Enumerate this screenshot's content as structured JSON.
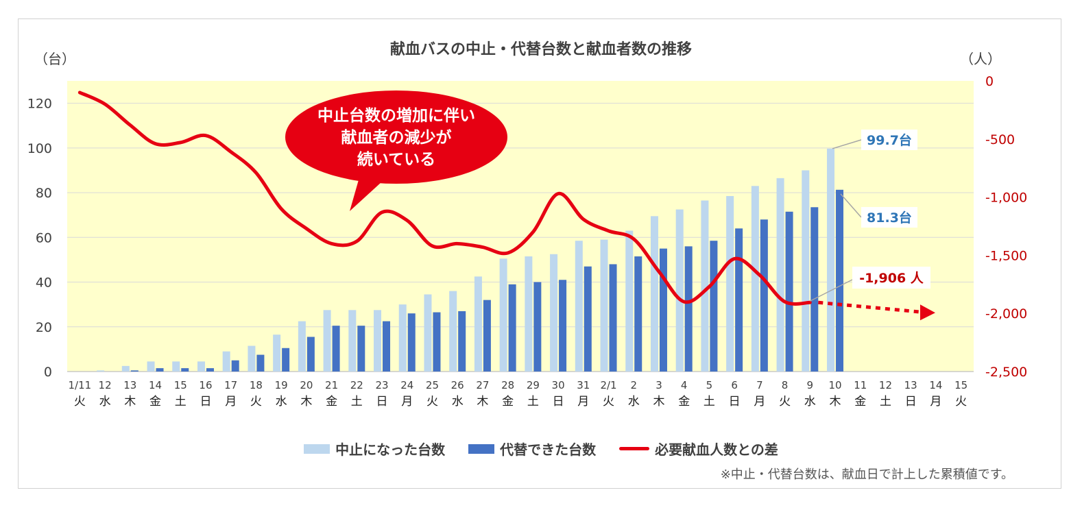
{
  "title": "献血バスの中止・代替台数と献血者数の推移",
  "left_unit": "（台）",
  "right_unit": "（人）",
  "note": "※中止・代替台数は、献血日で計上した累積値です。",
  "callout": [
    "中止台数の増加に伴い",
    "献血者の減少が",
    "続いている"
  ],
  "chart_data": {
    "type": "bar",
    "title": "献血バスの中止・代替台数と献血者数の推移",
    "categories": [
      "1/11",
      "12",
      "13",
      "14",
      "15",
      "16",
      "17",
      "18",
      "19",
      "20",
      "21",
      "22",
      "23",
      "24",
      "25",
      "26",
      "27",
      "28",
      "29",
      "30",
      "31",
      "2/1",
      "2",
      "3",
      "4",
      "5",
      "6",
      "7",
      "8",
      "9",
      "10",
      "11",
      "12",
      "13",
      "14",
      "15"
    ],
    "weekdays": [
      "火",
      "水",
      "木",
      "金",
      "土",
      "日",
      "月",
      "火",
      "水",
      "木",
      "金",
      "土",
      "日",
      "月",
      "火",
      "水",
      "木",
      "金",
      "土",
      "日",
      "月",
      "火",
      "水",
      "木",
      "金",
      "土",
      "日",
      "月",
      "火",
      "水",
      "木",
      "金",
      "土",
      "日",
      "月",
      "火"
    ],
    "left_axis": {
      "min": 0,
      "max": 120,
      "ticks": [
        "0",
        "20",
        "40",
        "60",
        "80",
        "100",
        "120"
      ]
    },
    "right_axis": {
      "min": -2500,
      "max": 0,
      "ticks": [
        "0",
        "-500",
        "-1,000",
        "-1,500",
        "-2,000",
        "-2,500"
      ]
    },
    "series": [
      {
        "name": "中止になった台数",
        "type": "bar",
        "axis": "left",
        "color": "#bdd7ee",
        "values": [
          0,
          0.5,
          2.5,
          4.5,
          4.5,
          4.5,
          9,
          11.5,
          16.5,
          22.5,
          27.5,
          27.5,
          27.5,
          30,
          34.5,
          36,
          42.5,
          50.5,
          51.5,
          52.5,
          58.5,
          59,
          63,
          69.5,
          72.5,
          76.5,
          78.5,
          83,
          86.5,
          90,
          99.7,
          null,
          null,
          null,
          null,
          null
        ]
      },
      {
        "name": "代替できた台数",
        "type": "bar",
        "axis": "left",
        "color": "#4472c4",
        "values": [
          0,
          0,
          0.5,
          1.5,
          1.5,
          1.5,
          5,
          7.5,
          10.5,
          15.5,
          20.5,
          20.5,
          22.5,
          26,
          26.5,
          27,
          32,
          39,
          40,
          41,
          47,
          48,
          51.5,
          55,
          56,
          58.5,
          64,
          68,
          71.5,
          73.5,
          81.3,
          null,
          null,
          null,
          null,
          null
        ]
      },
      {
        "name": "必要献血人数との差",
        "type": "line",
        "axis": "right",
        "color": "#e60012",
        "values": [
          -100,
          -200,
          -380,
          -540,
          -530,
          -470,
          -610,
          -790,
          -1100,
          -1270,
          -1400,
          -1380,
          -1130,
          -1200,
          -1420,
          -1400,
          -1430,
          -1480,
          -1300,
          -970,
          -1190,
          -1290,
          -1360,
          -1640,
          -1900,
          -1770,
          -1530,
          -1670,
          -1900,
          -1906,
          null,
          null,
          null,
          null,
          null,
          null
        ]
      }
    ],
    "labels": {
      "cancel_last": "99.7台",
      "subst_last": "81.3台",
      "line_last": "-1,906 人"
    },
    "grid": true,
    "legend": "bottom"
  }
}
